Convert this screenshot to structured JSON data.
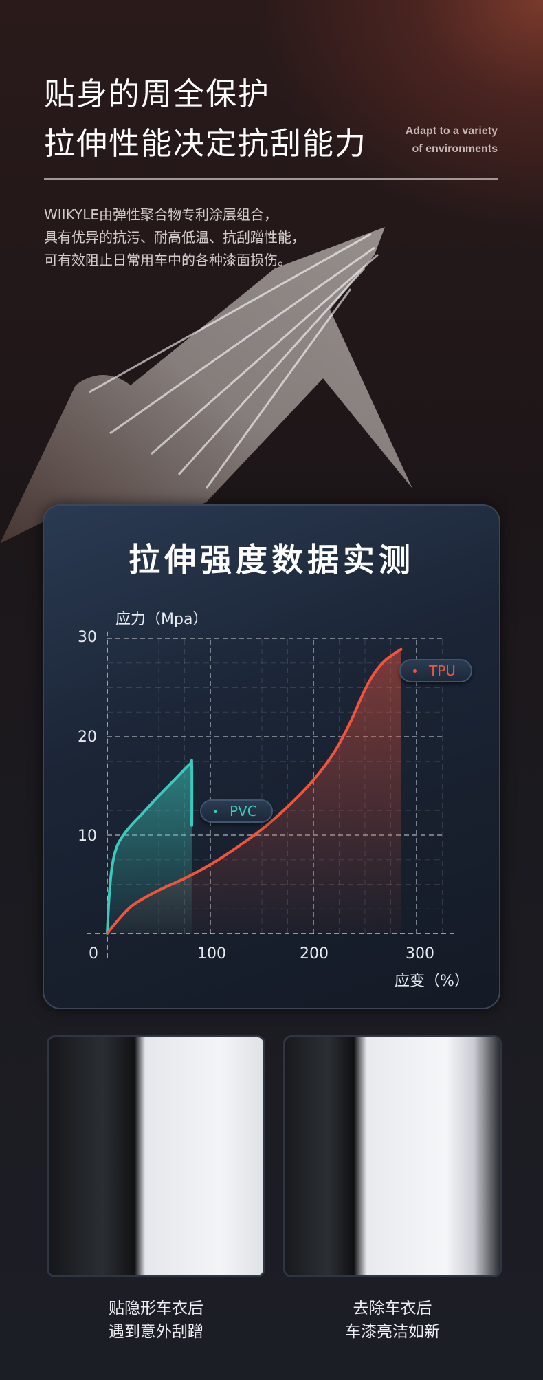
{
  "header": {
    "title_line1": "贴身的周全保护",
    "title_line2": "拉伸性能决定抗刮能力",
    "subtitle_en_line1": "Adapt to a variety",
    "subtitle_en_line2": "of environments"
  },
  "description": [
    "WIIKYLE由弹性聚合物专利涂层组合，",
    "具有优异的抗污、耐高低温、抗刮蹭性能，",
    "可有效阻止日常用车中的各种漆面损伤。"
  ],
  "chart_data": {
    "type": "line",
    "title": "拉伸强度数据实测",
    "ylabel": "应力（Mpa）",
    "xlabel": "应变（%）",
    "xlim": [
      0,
      340
    ],
    "ylim": [
      0,
      30
    ],
    "xticks": [
      "0",
      "100",
      "200",
      "300"
    ],
    "yticks": [
      "10",
      "20",
      "30"
    ],
    "grid": true,
    "series": [
      {
        "name": "PVC",
        "color": "#3cc9bd",
        "x": [
          0,
          2,
          5,
          10,
          20,
          35,
          50,
          65,
          80,
          82,
          82
        ],
        "y": [
          0,
          4,
          7,
          9,
          10.6,
          12.3,
          14,
          15.6,
          17.2,
          17,
          11
        ]
      },
      {
        "name": "TPU",
        "color": "#f0553c",
        "x": [
          0,
          10,
          25,
          50,
          75,
          100,
          125,
          150,
          175,
          200,
          220,
          235,
          250,
          260,
          270,
          285
        ],
        "y": [
          0,
          1.3,
          2.9,
          4.4,
          5.6,
          7,
          8.7,
          10.6,
          12.9,
          15.6,
          18.4,
          21.3,
          24.8,
          26.6,
          27.8,
          28.9
        ]
      }
    ]
  },
  "photos": [
    {
      "caption_line1": "贴隐形车衣后",
      "caption_line2": "遇到意外刮蹭"
    },
    {
      "caption_line1": "去除车衣后",
      "caption_line2": "车漆亮洁如新"
    }
  ]
}
